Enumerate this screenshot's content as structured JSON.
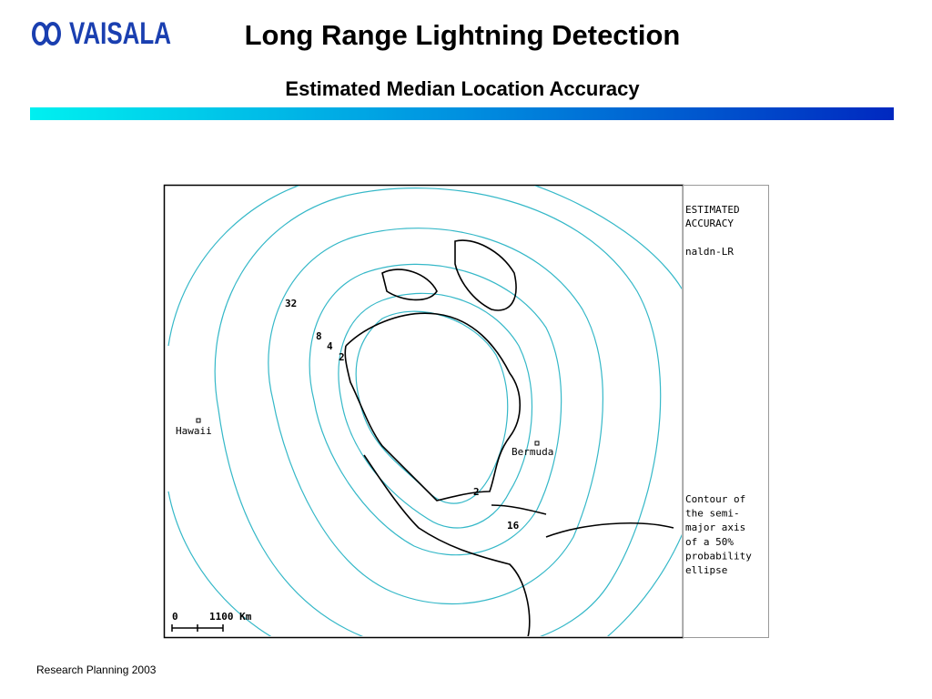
{
  "header": {
    "logo": "VAISALA",
    "title": "Long Range Lightning Detection",
    "subtitle": "Estimated Median Location Accuracy"
  },
  "map": {
    "contour_labels": [
      32,
      8,
      4,
      2,
      2,
      16
    ],
    "places": [
      "Hawaii",
      "Bermuda"
    ],
    "scale": {
      "start": "0",
      "end": "1100 Km"
    }
  },
  "legend": {
    "heading": [
      "ESTIMATED",
      "ACCURACY",
      "naldn-LR"
    ],
    "note": [
      "Contour of",
      "the semi-",
      "major axis",
      "of a 50%",
      "probability",
      "ellipse"
    ]
  },
  "footer": "Research Planning 2003"
}
